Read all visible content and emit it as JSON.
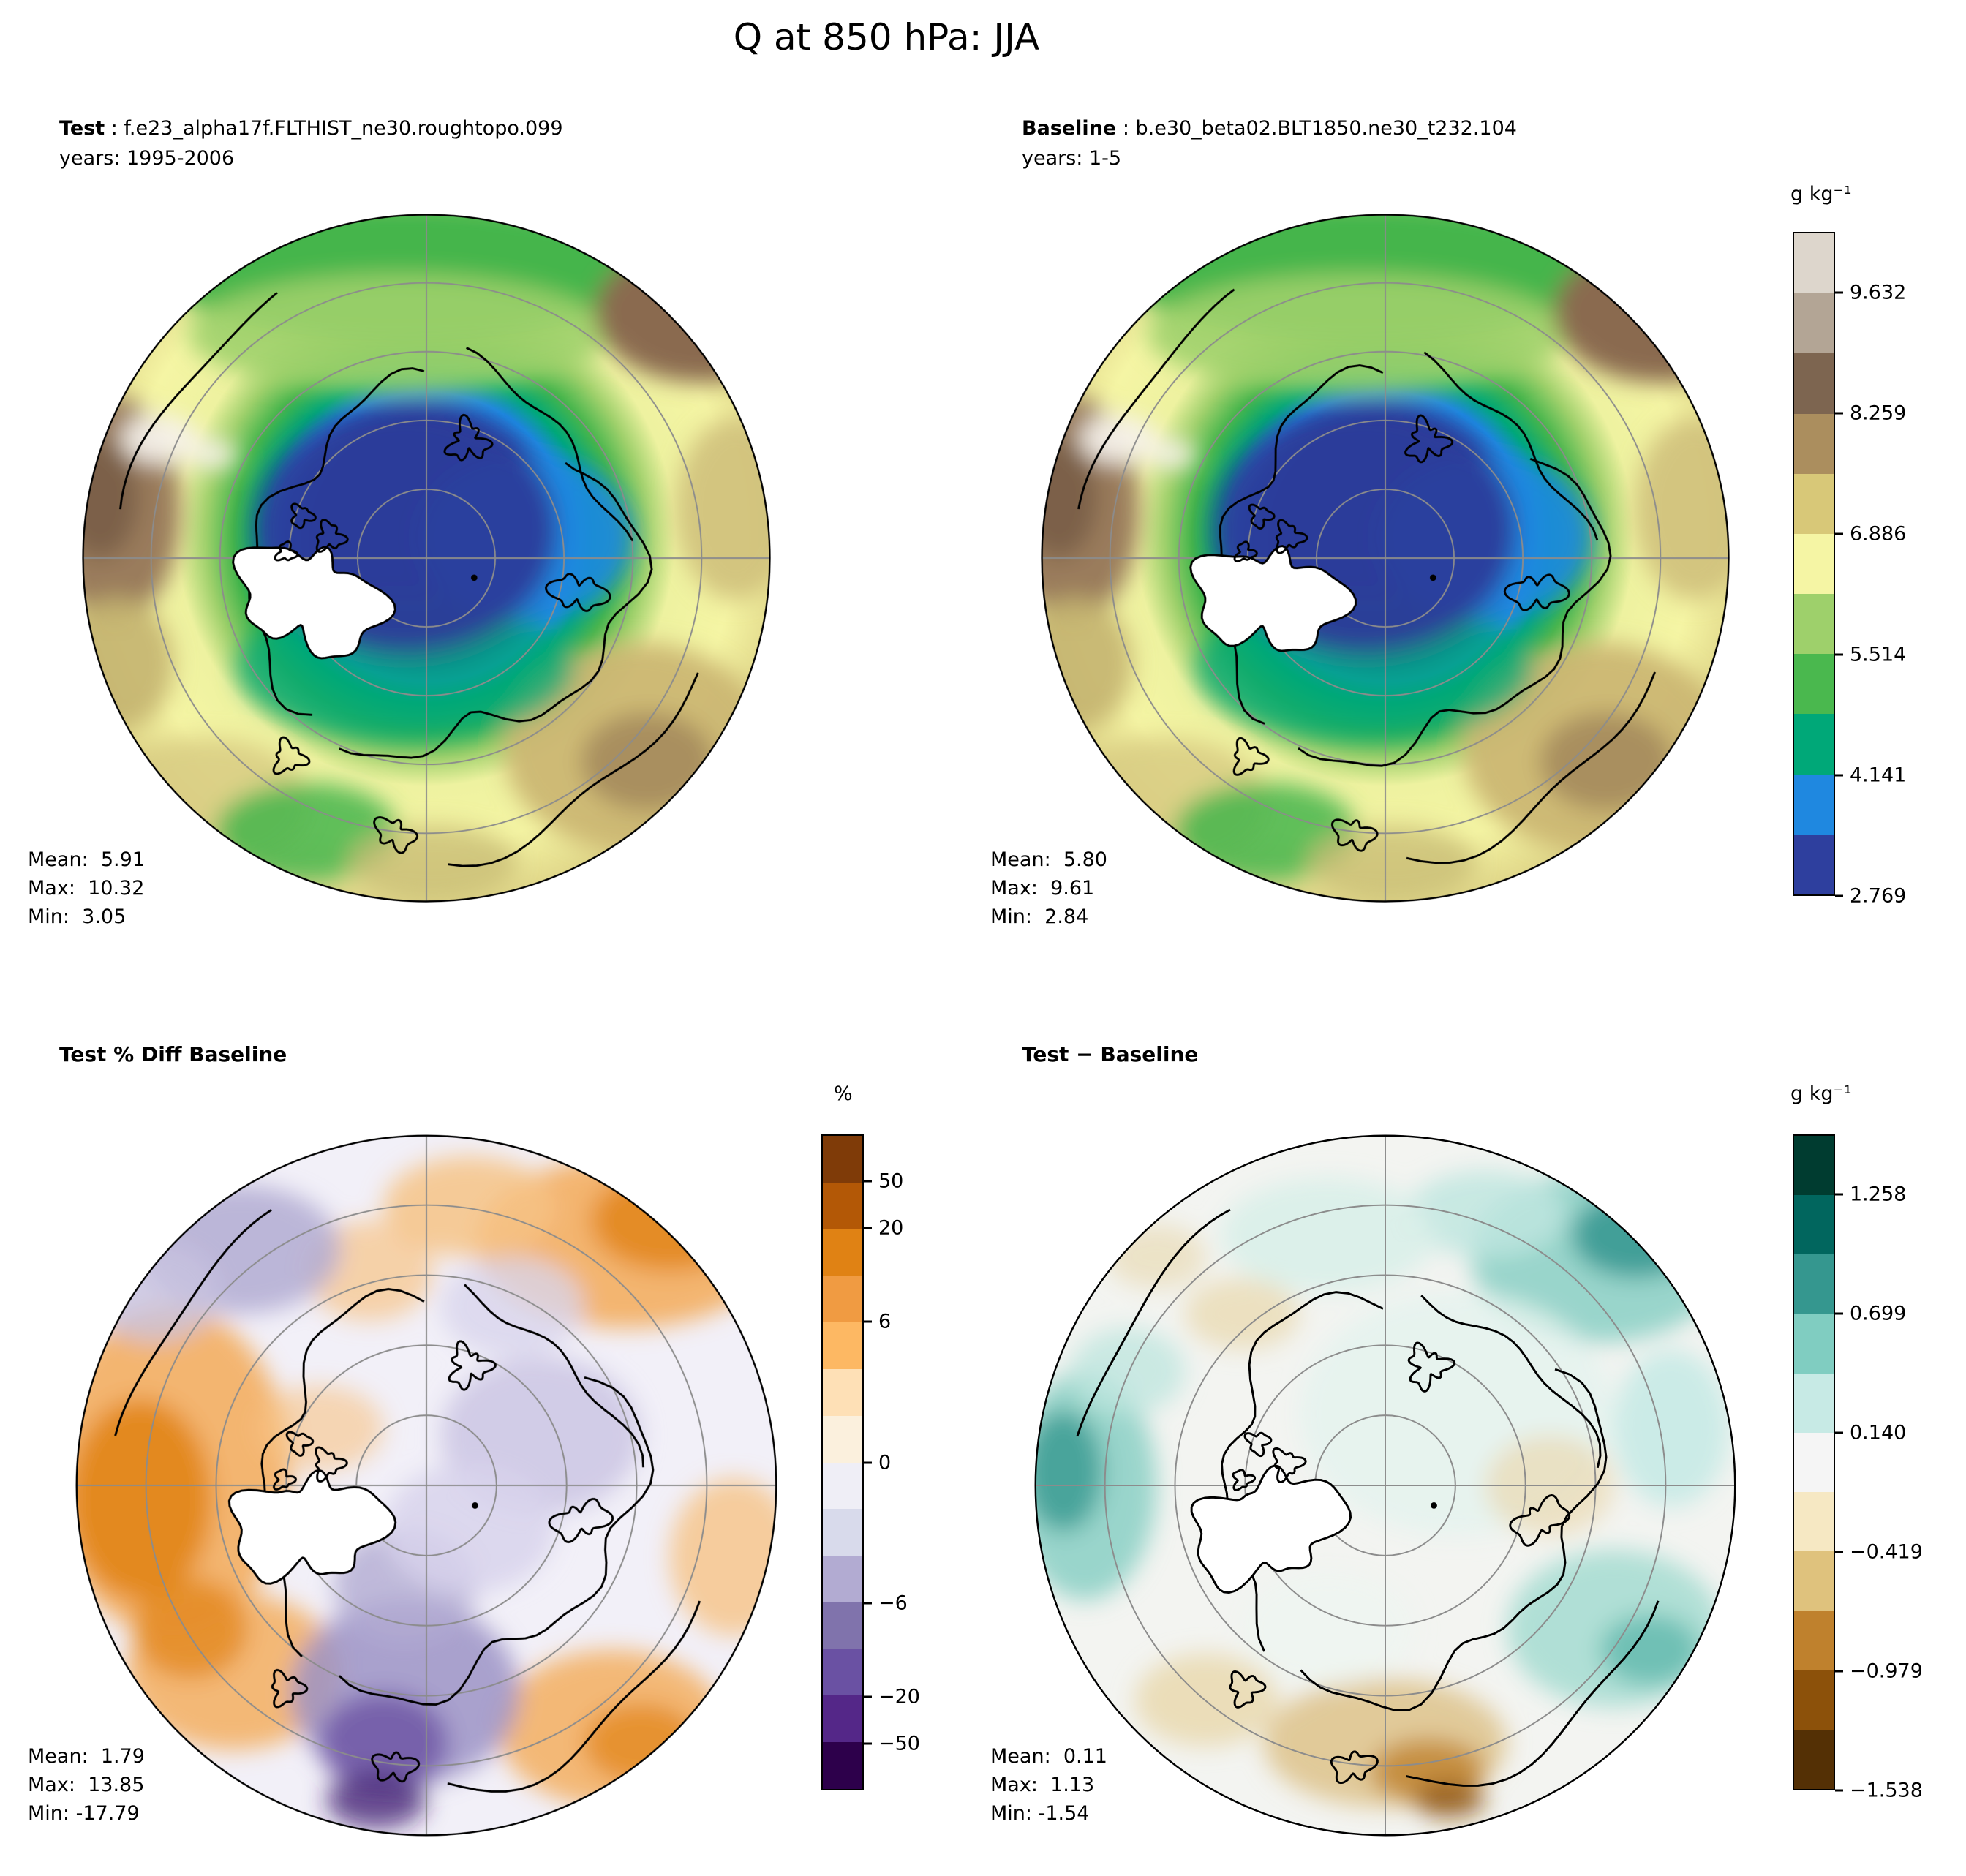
{
  "title": "Q at 850 hPa: JJA",
  "chart_data": [
    {
      "type": "heatmap",
      "panel": "test",
      "variable": "Q at 850 hPa",
      "season": "JJA",
      "projection": "north polar stereographic",
      "title_bold": "Test",
      "title_rest": " : f.e23_alpha17f.FLTHIST_ne30.roughtopo.099",
      "years": "years: 1995-2006",
      "units": "g kg⁻¹",
      "stats": {
        "mean": 5.91,
        "max": 10.32,
        "min": 3.05
      },
      "colorbar": "q",
      "gridlines": true
    },
    {
      "type": "heatmap",
      "panel": "baseline",
      "variable": "Q at 850 hPa",
      "season": "JJA",
      "projection": "north polar stereographic",
      "title_bold": "Baseline",
      "title_rest": " : b.e30_beta02.BLT1850.ne30_t232.104",
      "years": "years: 1-5",
      "units": "g kg⁻¹",
      "stats": {
        "mean": 5.8,
        "max": 9.61,
        "min": 2.84
      },
      "colorbar": "q",
      "gridlines": true
    },
    {
      "type": "heatmap",
      "panel": "pct-diff",
      "variable": "Q at 850 hPa",
      "season": "JJA",
      "projection": "north polar stereographic",
      "title": "Test % Diff Baseline",
      "units": "%",
      "stats": {
        "mean": 1.79,
        "max": 13.85,
        "min": -17.79
      },
      "colorbar": "pct",
      "gridlines": true
    },
    {
      "type": "heatmap",
      "panel": "diff",
      "variable": "Q at 850 hPa",
      "season": "JJA",
      "projection": "north polar stereographic",
      "title": "Test − Baseline",
      "units": "g kg⁻¹",
      "stats": {
        "mean": 0.11,
        "max": 1.13,
        "min": -1.54
      },
      "colorbar": "diff",
      "gridlines": true
    }
  ],
  "colorbars": {
    "q": {
      "unit": "g kg⁻¹",
      "colors": [
        "#2e3f9e",
        "#1f88e0",
        "#00a878",
        "#4ab84e",
        "#9ed06b",
        "#f5f5a4",
        "#d8c878",
        "#ab8e5e",
        "#7d6550",
        "#b3a595",
        "#ddd6cc"
      ],
      "ticks": [
        {
          "value": 2.769,
          "label": "2.769",
          "pos": 0.0
        },
        {
          "value": 4.141,
          "label": "4.141",
          "pos": 0.1818
        },
        {
          "value": 5.514,
          "label": "5.514",
          "pos": 0.3636
        },
        {
          "value": 6.886,
          "label": "6.886",
          "pos": 0.5455
        },
        {
          "value": 8.259,
          "label": "8.259",
          "pos": 0.7273
        },
        {
          "value": 9.632,
          "label": "9.632",
          "pos": 0.9091
        }
      ]
    },
    "pct": {
      "unit": "%",
      "colors": [
        "#2d004b",
        "#542788",
        "#6a51a3",
        "#8073ac",
        "#b2abd2",
        "#d8daeb",
        "#efeef6",
        "#fbf0dd",
        "#fee0b6",
        "#fdb863",
        "#f09b42",
        "#e08214",
        "#b35806",
        "#7f3b08"
      ],
      "ticks": [
        {
          "value": -50,
          "label": "−50",
          "pos": 0.0714
        },
        {
          "value": -20,
          "label": "−20",
          "pos": 0.1429
        },
        {
          "value": -6,
          "label": "−6",
          "pos": 0.2857
        },
        {
          "value": 0,
          "label": "0",
          "pos": 0.5
        },
        {
          "value": 6,
          "label": "6",
          "pos": 0.7143
        },
        {
          "value": 20,
          "label": "20",
          "pos": 0.8571
        },
        {
          "value": 50,
          "label": "50",
          "pos": 0.9286
        }
      ]
    },
    "diff": {
      "unit": "g kg⁻¹",
      "colors": [
        "#543005",
        "#8c510a",
        "#bf812d",
        "#dfc27d",
        "#f6e8c3",
        "#f5f5f5",
        "#c7eae5",
        "#80cdc1",
        "#35978f",
        "#01665e",
        "#003c30"
      ],
      "ticks": [
        {
          "value": -1.538,
          "label": "−1.538",
          "pos": 0.0
        },
        {
          "value": -0.979,
          "label": "−0.979",
          "pos": 0.1818
        },
        {
          "value": -0.419,
          "label": "−0.419",
          "pos": 0.3636
        },
        {
          "value": 0.14,
          "label": "0.140",
          "pos": 0.5455
        },
        {
          "value": 0.699,
          "label": "0.699",
          "pos": 0.7273
        },
        {
          "value": 1.258,
          "label": "1.258",
          "pos": 0.9091
        }
      ]
    }
  },
  "stat_labels": {
    "mean": "Mean:",
    "max": "Max:",
    "min": "Min:"
  }
}
